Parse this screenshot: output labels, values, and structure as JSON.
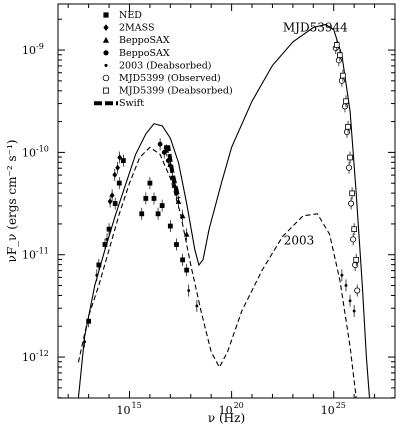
{
  "chart_data": {
    "type": "scatter",
    "title": "",
    "xlabel": "ν (Hz)",
    "ylabel": "νF_ν (ergs cm⁻² s⁻¹)",
    "xscale": "log",
    "yscale": "log",
    "xlim_log10": [
      11.5,
      28.0
    ],
    "ylim_log10": [
      -12.4,
      -8.55
    ],
    "x_ticks": [
      {
        "log": 15,
        "label": "10",
        "exp": "15"
      },
      {
        "log": 20,
        "label": "10",
        "exp": "20"
      },
      {
        "log": 25,
        "label": "10",
        "exp": "25"
      }
    ],
    "y_ticks": [
      {
        "log": -12,
        "label": "10",
        "exp": "-12"
      },
      {
        "log": -11,
        "label": "10",
        "exp": "-11"
      },
      {
        "log": -10,
        "label": "10",
        "exp": "-10"
      },
      {
        "log": -9,
        "label": "10",
        "exp": "-9"
      }
    ],
    "grid": false,
    "legend_position": "top-left",
    "legend": [
      {
        "name": "NED",
        "marker": "square"
      },
      {
        "name": "2MASS",
        "marker": "diamond"
      },
      {
        "name": "BeppoSAX",
        "marker": "triangle"
      },
      {
        "name": "BeppoSAX",
        "marker": "circle"
      },
      {
        "name": "2003 (Deabsorbed)",
        "marker": "dot"
      },
      {
        "name": "MJD5399 (Observed)",
        "marker": "open-circle"
      },
      {
        "name": "MJD5399 (Deabsorbed)",
        "marker": "open-square"
      },
      {
        "name": "Swift",
        "marker": "dash-line"
      }
    ],
    "annotations": [
      {
        "text": "MJD53944",
        "x_log": 24.1,
        "y_log": -8.82
      },
      {
        "text": "2003",
        "x_log": 23.3,
        "y_log": -10.9
      }
    ],
    "models": [
      {
        "style": "solid",
        "points_log": [
          [
            12.5,
            -12.4
          ],
          [
            12.8,
            -11.8
          ],
          [
            13.3,
            -11.3
          ],
          [
            13.8,
            -10.95
          ],
          [
            14.3,
            -10.62
          ],
          [
            14.8,
            -10.32
          ],
          [
            15.3,
            -10.02
          ],
          [
            15.8,
            -9.82
          ],
          [
            16.2,
            -9.72
          ],
          [
            16.6,
            -9.74
          ],
          [
            17.0,
            -9.86
          ],
          [
            17.4,
            -10.1
          ],
          [
            17.8,
            -10.5
          ],
          [
            18.2,
            -10.95
          ],
          [
            18.4,
            -11.1
          ],
          [
            18.6,
            -11.05
          ],
          [
            18.9,
            -10.75
          ],
          [
            19.5,
            -10.3
          ],
          [
            20.0,
            -9.95
          ],
          [
            21.0,
            -9.5
          ],
          [
            22.0,
            -9.15
          ],
          [
            23.0,
            -8.92
          ],
          [
            24.0,
            -8.78
          ],
          [
            24.6,
            -8.75
          ],
          [
            25.0,
            -8.8
          ],
          [
            25.4,
            -9.05
          ],
          [
            25.8,
            -9.6
          ],
          [
            26.1,
            -10.4
          ],
          [
            26.4,
            -11.3
          ],
          [
            26.6,
            -12.0
          ],
          [
            26.75,
            -12.4
          ]
        ]
      },
      {
        "style": "dashed",
        "points_log": [
          [
            12.5,
            -12.05
          ],
          [
            13.0,
            -11.6
          ],
          [
            13.5,
            -11.3
          ],
          [
            14.0,
            -10.95
          ],
          [
            14.5,
            -10.6
          ],
          [
            15.0,
            -10.3
          ],
          [
            15.5,
            -10.05
          ],
          [
            16.0,
            -9.95
          ],
          [
            16.5,
            -10.02
          ],
          [
            17.0,
            -10.25
          ],
          [
            17.5,
            -10.6
          ],
          [
            18.0,
            -11.1
          ],
          [
            18.5,
            -11.55
          ],
          [
            19.0,
            -11.95
          ],
          [
            19.4,
            -12.1
          ],
          [
            19.8,
            -11.95
          ],
          [
            20.5,
            -11.55
          ],
          [
            21.5,
            -11.15
          ],
          [
            22.5,
            -10.82
          ],
          [
            23.5,
            -10.62
          ],
          [
            24.2,
            -10.6
          ],
          [
            24.8,
            -10.8
          ],
          [
            25.3,
            -11.25
          ],
          [
            25.8,
            -11.9
          ],
          [
            26.1,
            -12.4
          ]
        ]
      }
    ],
    "swift_segment_log": [
      [
        16.7,
        -9.95
      ],
      [
        16.9,
        -9.95
      ],
      [
        17.1,
        -10.2
      ],
      [
        17.4,
        -10.45
      ]
    ],
    "series": [
      {
        "name": "NED",
        "marker": "square",
        "points_log": [
          [
            13.0,
            -11.65
          ],
          [
            13.5,
            -11.1
          ],
          [
            13.8,
            -10.9
          ],
          [
            14.0,
            -10.75
          ],
          [
            14.3,
            -10.5
          ],
          [
            14.5,
            -10.3
          ],
          [
            14.7,
            -10.08
          ],
          [
            15.6,
            -10.6
          ],
          [
            15.8,
            -10.45
          ],
          [
            16.0,
            -10.3
          ],
          [
            16.2,
            -10.45
          ],
          [
            16.4,
            -10.6
          ],
          [
            16.6,
            -10.52
          ],
          [
            17.0,
            -10.72
          ],
          [
            17.3,
            -10.9
          ],
          [
            17.6,
            -11.05
          ],
          [
            17.8,
            -11.15
          ]
        ]
      },
      {
        "name": "2MASS",
        "marker": "diamond",
        "points_log": [
          [
            14.05,
            -10.48
          ],
          [
            14.15,
            -10.42
          ],
          [
            14.28,
            -10.22
          ],
          [
            14.42,
            -10.15
          ],
          [
            14.52,
            -10.05
          ]
        ]
      },
      {
        "name": "BeppoSAX",
        "marker": "triangle",
        "points_log": [
          [
            16.8,
            -9.98
          ],
          [
            17.0,
            -10.12
          ],
          [
            17.2,
            -10.32
          ],
          [
            17.4,
            -10.48
          ],
          [
            17.6,
            -10.62
          ],
          [
            17.8,
            -10.8
          ]
        ]
      },
      {
        "name": "BeppoSAX",
        "marker": "circle",
        "points_log": [
          [
            16.5,
            -9.92
          ],
          [
            16.7,
            -10.0
          ],
          [
            16.9,
            -10.08
          ],
          [
            17.1,
            -10.25
          ],
          [
            17.3,
            -10.4
          ]
        ]
      },
      {
        "name": "2003 (Deabsorbed)",
        "marker": "dot",
        "points_log": [
          [
            12.8,
            -11.85
          ],
          [
            13.4,
            -11.2
          ],
          [
            13.9,
            -10.85
          ],
          [
            17.9,
            -11.35
          ],
          [
            18.3,
            -11.5
          ],
          [
            25.4,
            -11.2
          ],
          [
            25.6,
            -11.3
          ],
          [
            25.8,
            -11.45
          ],
          [
            26.0,
            -11.55
          ]
        ]
      },
      {
        "name": "MJD5399 (Observed)",
        "marker": "open-circle",
        "points_log": [
          [
            25.1,
            -8.98
          ],
          [
            25.25,
            -9.1
          ],
          [
            25.4,
            -9.3
          ],
          [
            25.55,
            -9.55
          ],
          [
            25.65,
            -9.8
          ],
          [
            25.75,
            -10.15
          ],
          [
            25.85,
            -10.5
          ],
          [
            25.95,
            -10.85
          ],
          [
            26.05,
            -11.1
          ],
          [
            26.15,
            -11.35
          ]
        ]
      },
      {
        "name": "MJD5399 (Deabsorbed)",
        "marker": "open-square",
        "points_log": [
          [
            25.15,
            -8.95
          ],
          [
            25.3,
            -9.05
          ],
          [
            25.45,
            -9.25
          ],
          [
            25.6,
            -9.5
          ],
          [
            25.7,
            -9.75
          ],
          [
            25.8,
            -10.05
          ],
          [
            25.9,
            -10.4
          ],
          [
            26.0,
            -10.75
          ],
          [
            26.1,
            -11.05
          ]
        ]
      }
    ]
  }
}
